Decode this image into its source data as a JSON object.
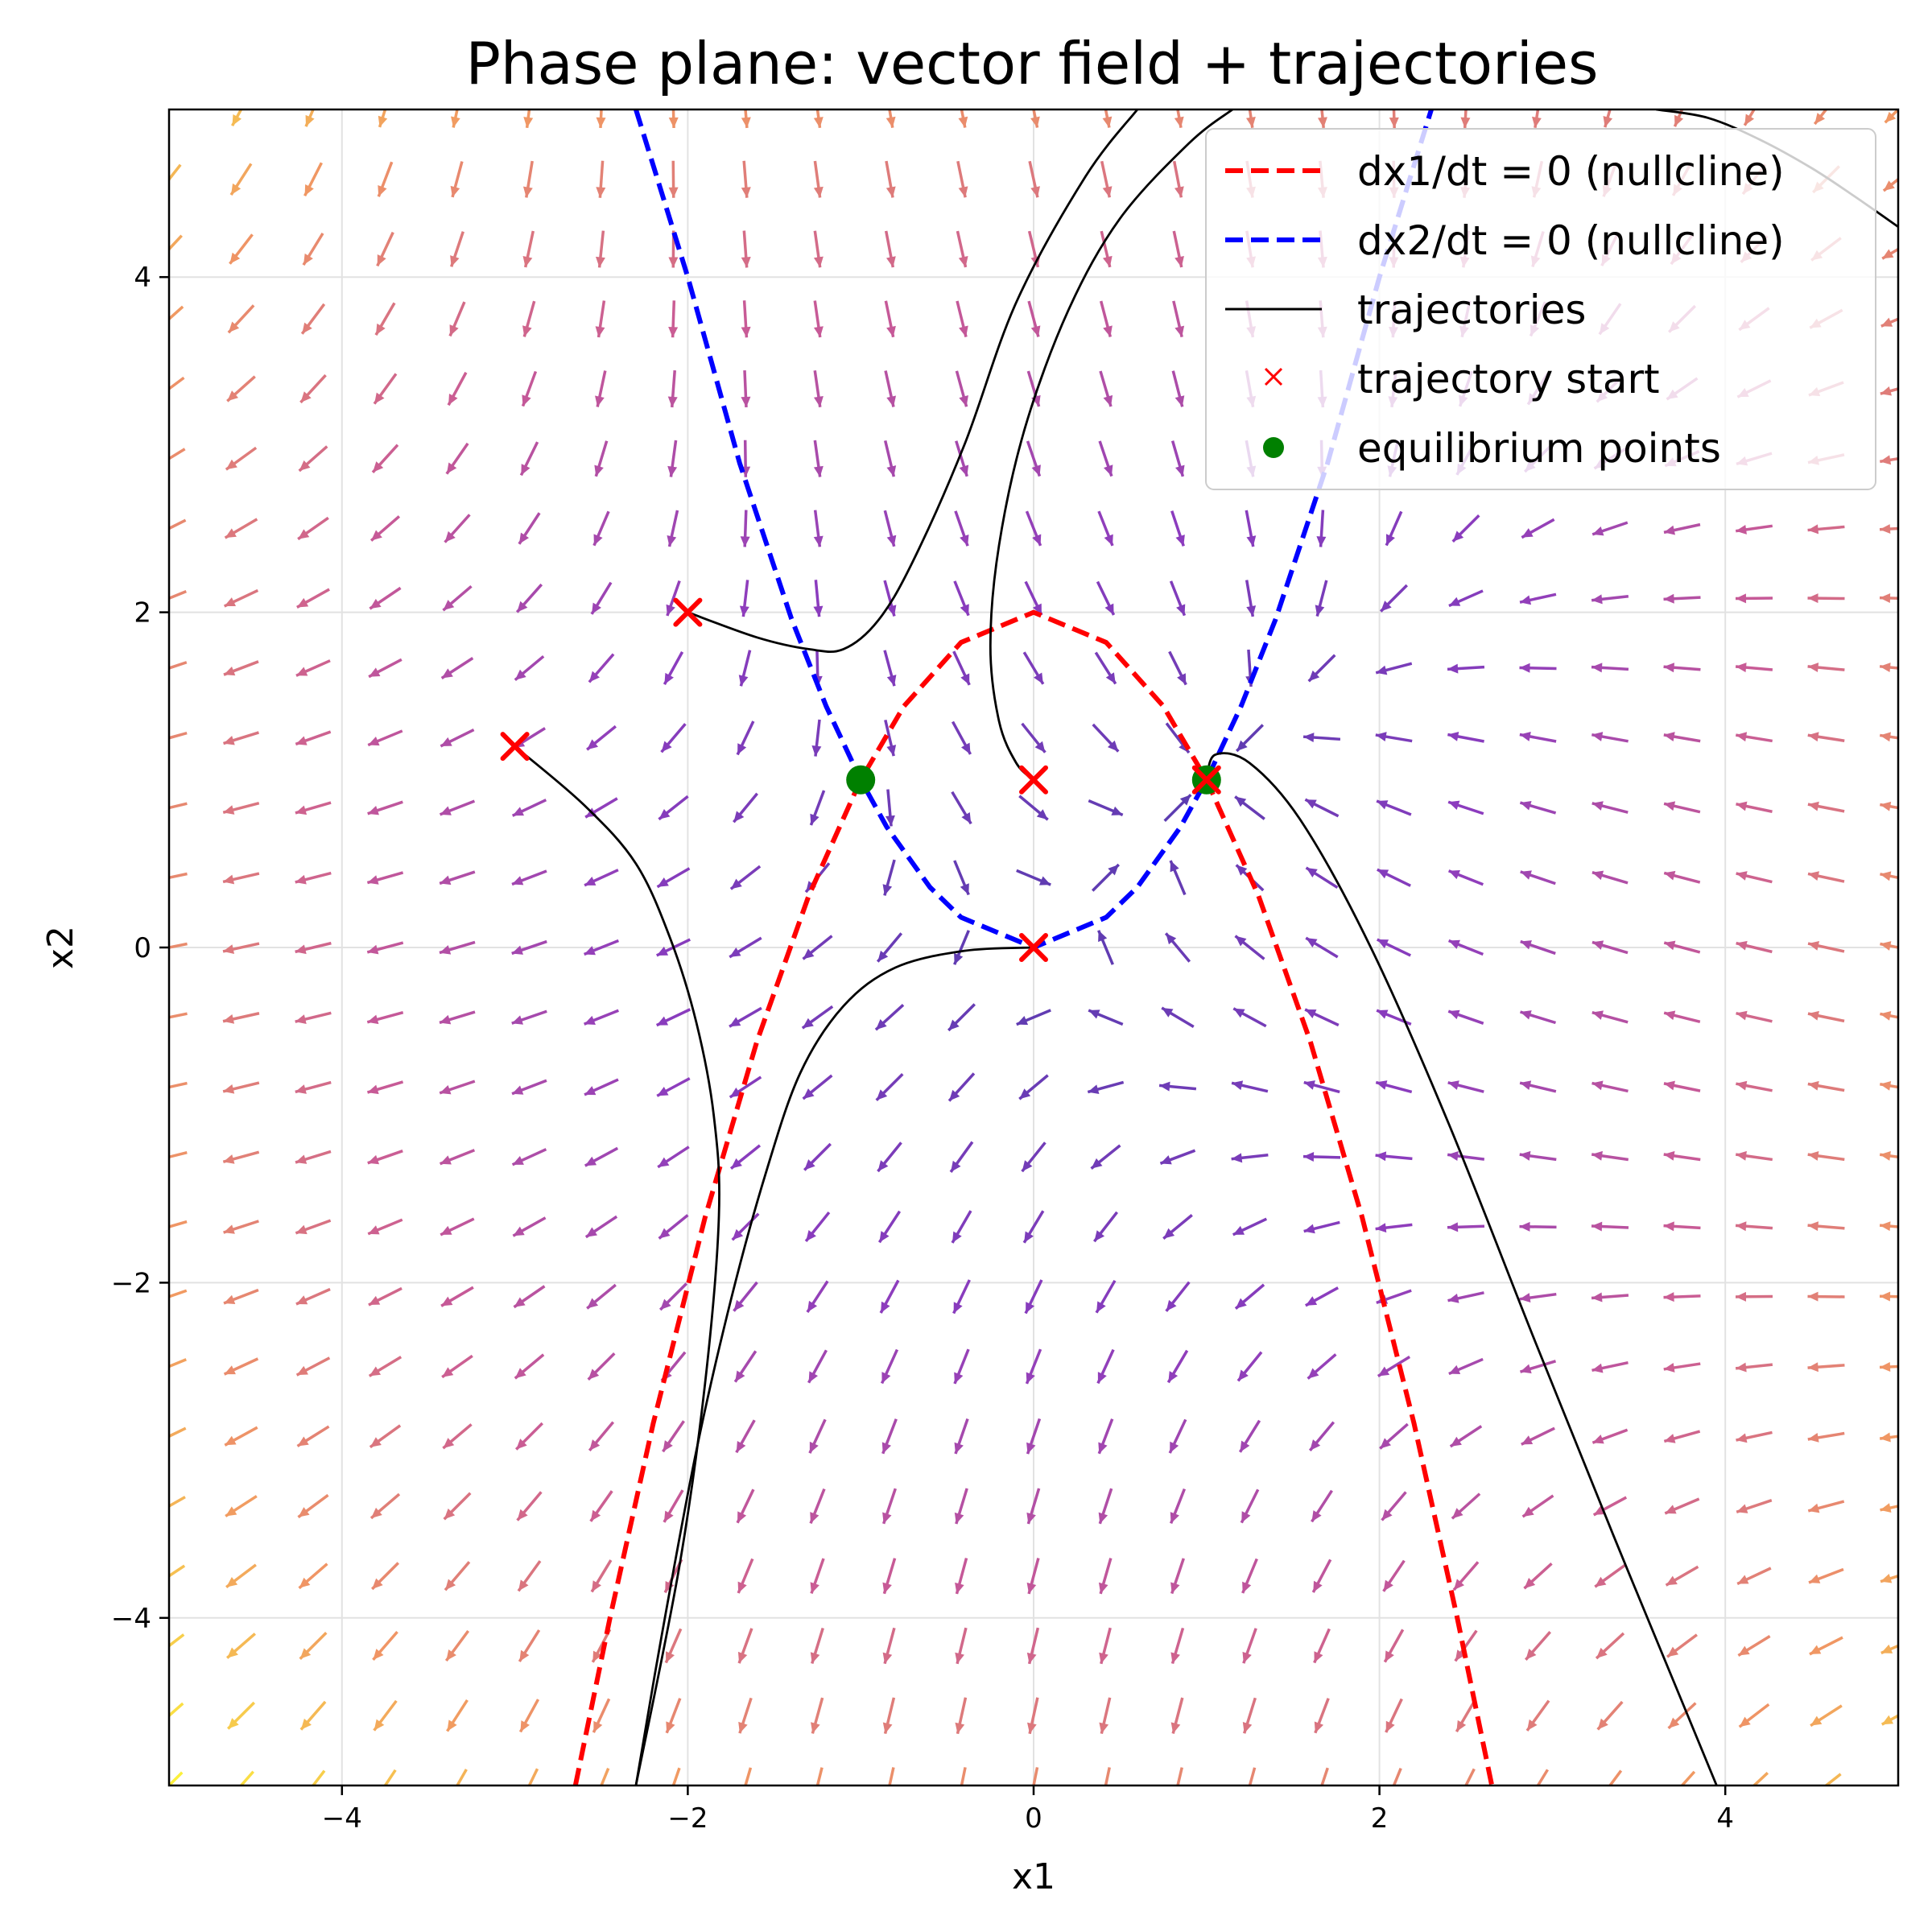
{
  "chart_data": {
    "type": "line",
    "title": "Phase plane: vector field + trajectories",
    "xlabel": "x1",
    "ylabel": "x2",
    "xlim": [
      -5,
      5
    ],
    "ylim": [
      -5,
      5
    ],
    "xticks": [
      -4,
      -2,
      0,
      2,
      4
    ],
    "yticks": [
      -4,
      -2,
      0,
      2,
      4
    ],
    "xtick_labels": [
      "−4",
      "−2",
      "0",
      "2",
      "4"
    ],
    "ytick_labels": [
      "−4",
      "−2",
      "0",
      "2",
      "4"
    ],
    "grid": true,
    "legend_position": "upper-right",
    "vector_field": {
      "grid_range": [
        -5,
        5
      ],
      "grid_count": 25,
      "dx1_dt": "x2 - x1^2",
      "dx2_dt": "x1 - x2^2 ... (field rendered from equations)",
      "colormap": "plasma (slow=purple, fast=yellow)"
    },
    "series": [
      {
        "name": "dx1/dt = 0 (nullcline)",
        "style": "dashed",
        "color": "#ff0000",
        "x": [
          -2.65,
          -2.45,
          -2.2,
          -1.9,
          -1.6,
          -1.3,
          -1.0,
          -0.75,
          -0.42,
          0.0,
          0.42,
          0.75,
          1.0,
          1.3,
          1.6,
          1.9,
          2.2,
          2.45,
          2.65
        ],
        "y": [
          -5.0,
          -4.0,
          -2.84,
          -1.61,
          -0.56,
          0.31,
          1.0,
          1.44,
          1.82,
          2.0,
          1.82,
          1.44,
          1.0,
          0.31,
          -0.56,
          -1.61,
          -2.84,
          -4.0,
          -5.0
        ]
      },
      {
        "name": "dx2/dt = 0 (nullcline)",
        "style": "dashed",
        "color": "#0000ff",
        "x": [
          -2.3,
          -2.0,
          -1.7,
          -1.4,
          -1.2,
          -1.0,
          -0.85,
          -0.6,
          -0.42,
          0.0,
          0.42,
          0.6,
          0.85,
          1.0,
          1.2,
          1.4,
          1.7,
          2.0,
          2.3
        ],
        "y": [
          5.0,
          4.0,
          2.89,
          1.96,
          1.44,
          1.0,
          0.72,
          0.36,
          0.18,
          0.0,
          0.18,
          0.36,
          0.72,
          1.0,
          1.44,
          1.96,
          2.89,
          4.0,
          5.0
        ]
      }
    ],
    "trajectories": {
      "name": "trajectories",
      "color": "#000000",
      "paths": [
        {
          "x": [
            -2.0,
            -1.6,
            -1.3,
            -1.1,
            -0.9,
            -0.7,
            -0.4,
            -0.1,
            0.3,
            0.6
          ],
          "y": [
            2.0,
            1.85,
            1.78,
            1.78,
            1.95,
            2.3,
            3.0,
            3.85,
            4.6,
            5.0
          ]
        },
        {
          "x": [
            0.0,
            -0.1,
            -0.2,
            -0.25,
            -0.2,
            -0.05,
            0.2,
            0.5,
            0.9,
            1.15
          ],
          "y": [
            1.0,
            1.1,
            1.35,
            1.8,
            2.4,
            3.1,
            3.8,
            4.35,
            4.8,
            5.0
          ]
        },
        {
          "x": [
            -3.0,
            -2.6,
            -2.3,
            -2.1,
            -1.95,
            -1.85,
            -1.82,
            -1.9,
            -2.05,
            -2.3
          ],
          "y": [
            1.2,
            0.85,
            0.5,
            0.05,
            -0.45,
            -1.0,
            -1.6,
            -2.6,
            -3.7,
            -5.0
          ]
        },
        {
          "x": [
            0.0,
            -0.4,
            -0.8,
            -1.1,
            -1.35,
            -1.55,
            -1.75,
            -1.95,
            -2.15,
            -2.3
          ],
          "y": [
            0.0,
            -0.02,
            -0.12,
            -0.35,
            -0.75,
            -1.35,
            -2.1,
            -3.0,
            -4.1,
            -5.0
          ]
        },
        {
          "x": [
            1.0,
            1.05,
            1.25,
            1.55,
            1.95,
            2.4,
            2.9,
            3.35,
            3.75,
            3.95
          ],
          "y": [
            1.0,
            1.15,
            1.1,
            0.75,
            0.0,
            -1.05,
            -2.35,
            -3.5,
            -4.5,
            -5.0
          ]
        },
        {
          "x": [
            3.6,
            3.9,
            4.2,
            4.5,
            4.75,
            5.0
          ],
          "y": [
            5.0,
            4.95,
            4.82,
            4.65,
            4.48,
            4.3
          ]
        }
      ]
    },
    "trajectory_start": {
      "name": "trajectory start",
      "marker": "x",
      "color": "#ff0000",
      "x": [
        -2.0,
        -3.0,
        0.0,
        0.0,
        1.0
      ],
      "y": [
        2.0,
        1.2,
        1.0,
        0.0,
        1.0
      ]
    },
    "equilibrium_points": {
      "name": "equilibrium points",
      "marker": "o",
      "color": "#008000",
      "x": [
        -1.0,
        1.0
      ],
      "y": [
        1.0,
        1.0
      ]
    }
  }
}
